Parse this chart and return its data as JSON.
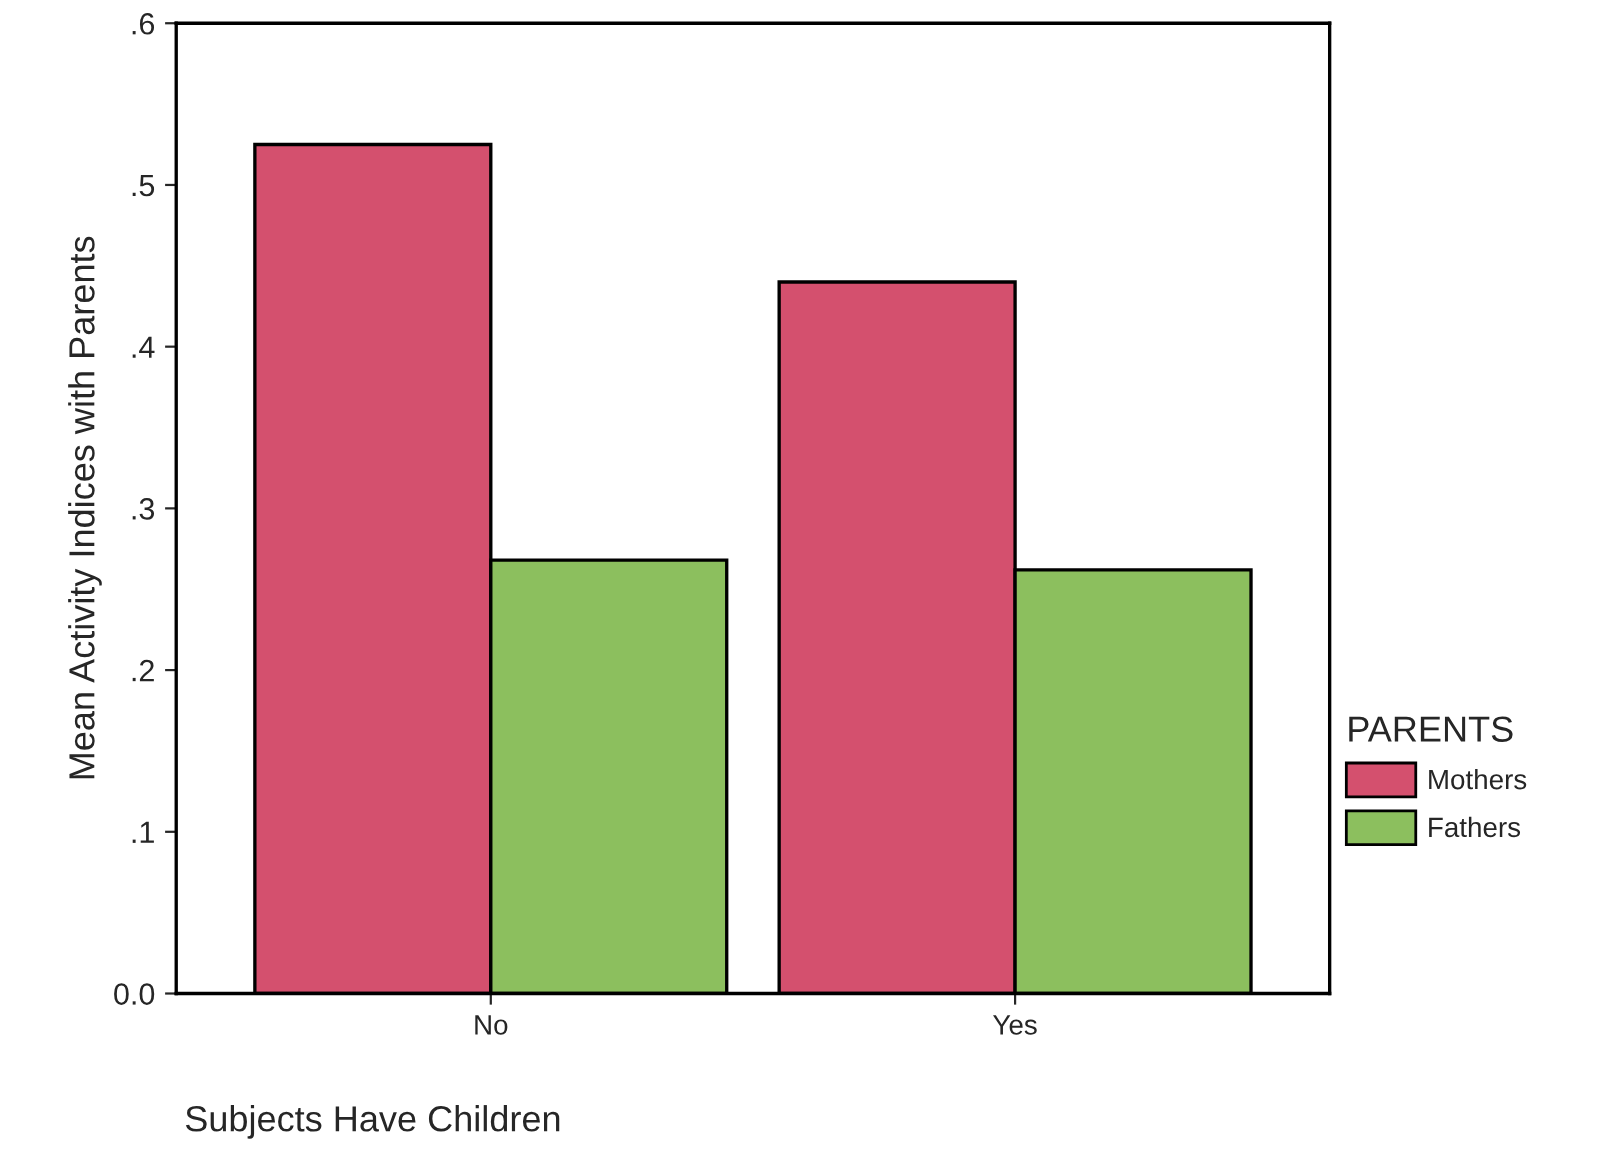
{
  "chart_data": {
    "type": "bar",
    "xlabel": "Subjects Have Children",
    "ylabel": "Mean Activity Indices with Parents",
    "legend_title": "PARENTS",
    "categories": [
      "No",
      "Yes"
    ],
    "series": [
      {
        "name": "Mothers",
        "color": "#d4506e",
        "values": [
          0.525,
          0.44
        ]
      },
      {
        "name": "Fathers",
        "color": "#8cbf5e",
        "values": [
          0.268,
          0.262
        ]
      }
    ],
    "ylim": [
      0,
      0.6
    ],
    "yticks": [
      {
        "value": 0,
        "label": "0.0"
      },
      {
        "value": 0.1,
        "label": ".1"
      },
      {
        "value": 0.2,
        "label": ".2"
      },
      {
        "value": 0.3,
        "label": ".3"
      },
      {
        "value": 0.4,
        "label": ".4"
      },
      {
        "value": 0.5,
        "label": ".5"
      },
      {
        "value": 0.6,
        "label": ".6"
      }
    ],
    "legend": "right",
    "grid": false
  }
}
